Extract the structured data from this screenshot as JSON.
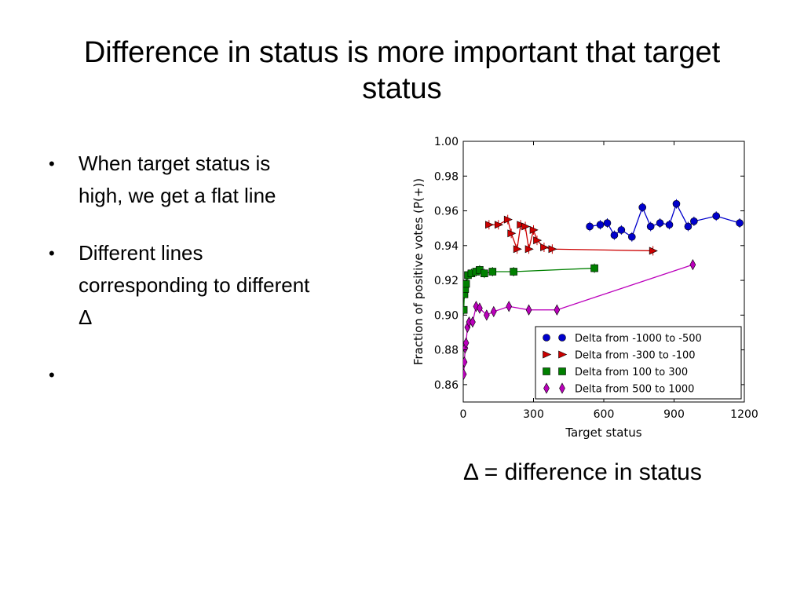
{
  "slide": {
    "title": "Difference in status is more important that target status",
    "bullets": [
      "When target status is high, we get a flat line",
      "Different lines corresponding to different Δ",
      ""
    ],
    "caption": "Δ = difference in status"
  },
  "chart_data": {
    "type": "line",
    "xlabel": "Target status",
    "ylabel": "Fraction of positive votes (P(+))",
    "xlim": [
      0,
      1200
    ],
    "ylim": [
      0.85,
      1.0
    ],
    "xticks": [
      "0",
      "300",
      "600",
      "900",
      "1200"
    ],
    "yticks": [
      "0.86",
      "0.88",
      "0.90",
      "0.92",
      "0.94",
      "0.96",
      "0.98",
      "1.00"
    ],
    "grid": false,
    "legend_position": "lower-right",
    "series": [
      {
        "name": "Delta from -1000 to -500",
        "color": "#0000cc",
        "marker": "circle",
        "x": [
          540,
          585,
          615,
          645,
          675,
          720,
          765,
          800,
          840,
          880,
          910,
          960,
          985,
          1080,
          1180
        ],
        "y": [
          0.951,
          0.952,
          0.953,
          0.946,
          0.949,
          0.945,
          0.962,
          0.951,
          0.953,
          0.952,
          0.964,
          0.951,
          0.954,
          0.957,
          0.953
        ]
      },
      {
        "name": "Delta from -300 to -100",
        "color": "#cc0000",
        "marker": "triangle-right",
        "x": [
          110,
          150,
          190,
          205,
          230,
          245,
          265,
          280,
          300,
          315,
          345,
          380,
          810
        ],
        "y": [
          0.952,
          0.952,
          0.955,
          0.947,
          0.938,
          0.952,
          0.951,
          0.938,
          0.949,
          0.943,
          0.939,
          0.938,
          0.937
        ]
      },
      {
        "name": "Delta from 100 to 300",
        "color": "#008000",
        "marker": "square",
        "x": [
          2,
          5,
          8,
          12,
          20,
          35,
          55,
          70,
          90,
          125,
          215,
          560
        ],
        "y": [
          0.903,
          0.912,
          0.915,
          0.918,
          0.923,
          0.924,
          0.925,
          0.926,
          0.924,
          0.925,
          0.925,
          0.927
        ]
      },
      {
        "name": "Delta from 500 to 1000",
        "color": "#bb00bb",
        "marker": "diamond",
        "x": [
          2,
          5,
          8,
          12,
          18,
          25,
          40,
          55,
          70,
          100,
          130,
          195,
          280,
          400,
          980
        ],
        "y": [
          0.866,
          0.873,
          0.881,
          0.884,
          0.893,
          0.896,
          0.896,
          0.905,
          0.904,
          0.9,
          0.902,
          0.905,
          0.903,
          0.903,
          0.929
        ]
      }
    ]
  }
}
